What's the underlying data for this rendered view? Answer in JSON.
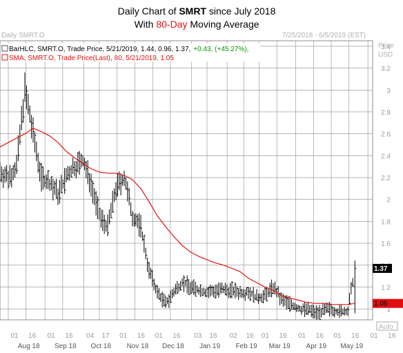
{
  "colors": {
    "price": "#000000",
    "sma": "#e01010",
    "up": "#009900",
    "grid": "#8c8c8c",
    "sma_tag": "#e01010"
  },
  "chart_data": {
    "type": "line",
    "title_line1": {
      "pre": "Daily Chart of ",
      "bold": "SMRT",
      "post": " since July 2018"
    },
    "title_line2": {
      "pre": "With ",
      "red": "80-Day",
      "post": " Moving Average"
    },
    "symbol_label": "Daily SMRT.O",
    "date_range": "7/25/2018 - 6/5/2019 (EST)",
    "price_label": "Price",
    "currency_label": "USD",
    "legend": {
      "bar": "BarHLC, SMRT.O, Trade Price, 5/21/2019, 1.44, 0.96, 1.37,",
      "bar_change": "+0.43, (+45.27%),",
      "sma": "SMA, SMRT.O, Trade Price(Last), 80, 5/21/2019, 1.05"
    },
    "last_price_tag": "1.37",
    "sma_tag": "1.05",
    "auto_label": "Auto",
    "y_ticks": [
      "3.4",
      "3.2",
      "3",
      "2.8",
      "2.6",
      "2.4",
      "2.2",
      "2",
      "1.8",
      "1.6",
      "1.4",
      "1.2",
      "1"
    ],
    "ylim": [
      0.9,
      3.45
    ],
    "x_days": [
      "01",
      "16",
      "01",
      "16",
      "04",
      "17",
      "01",
      "16",
      "01",
      "16",
      "03",
      "16",
      "02",
      "16",
      "01",
      "16",
      "01",
      "16",
      "01",
      "16",
      "01",
      "16",
      "03"
    ],
    "x_months": [
      "Aug 18",
      "Sep 18",
      "Oct 18",
      "Nov 18",
      "Dec 18",
      "Jan 19",
      "Feb 19",
      "Mar 19",
      "Apr 19",
      "May 19"
    ],
    "series": [
      {
        "name": "SMRT.O",
        "x": [
          "2018-07-25",
          "2018-08-01",
          "2018-08-08",
          "2018-08-15",
          "2018-08-22",
          "2018-08-29",
          "2018-09-05",
          "2018-09-12",
          "2018-09-19",
          "2018-09-26",
          "2018-10-03",
          "2018-10-10",
          "2018-10-17",
          "2018-10-24",
          "2018-10-31",
          "2018-11-07",
          "2018-11-14",
          "2018-11-21",
          "2018-11-28",
          "2018-12-05",
          "2018-12-12",
          "2018-12-19",
          "2018-12-26",
          "2019-01-02",
          "2019-01-09",
          "2019-01-16",
          "2019-01-23",
          "2019-01-30",
          "2019-02-06",
          "2019-02-13",
          "2019-02-20",
          "2019-02-27",
          "2019-03-06",
          "2019-03-13",
          "2019-03-20",
          "2019-03-27",
          "2019-04-03",
          "2019-04-10",
          "2019-04-17",
          "2019-04-24",
          "2019-05-01",
          "2019-05-08",
          "2019-05-15",
          "2019-05-21"
        ],
        "values": [
          2.25,
          2.2,
          2.3,
          3.0,
          2.6,
          2.2,
          2.15,
          2.05,
          2.2,
          2.3,
          2.35,
          2.15,
          1.85,
          1.75,
          2.1,
          2.2,
          1.85,
          1.75,
          1.35,
          1.15,
          1.05,
          1.15,
          1.25,
          1.2,
          1.17,
          1.15,
          1.17,
          1.17,
          1.17,
          1.15,
          1.16,
          1.1,
          1.12,
          1.2,
          1.08,
          1.05,
          1.0,
          1.0,
          0.97,
          0.98,
          1.0,
          0.97,
          0.98,
          1.37
        ]
      },
      {
        "name": "SMA 80",
        "x": [
          "2018-07-25",
          "2018-08-01",
          "2018-08-08",
          "2018-08-15",
          "2018-08-22",
          "2018-08-29",
          "2018-09-05",
          "2018-09-12",
          "2018-09-19",
          "2018-09-26",
          "2018-10-03",
          "2018-10-10",
          "2018-10-17",
          "2018-10-24",
          "2018-10-31",
          "2018-11-07",
          "2018-11-14",
          "2018-11-21",
          "2018-11-28",
          "2018-12-05",
          "2018-12-12",
          "2018-12-19",
          "2018-12-26",
          "2019-01-02",
          "2019-01-09",
          "2019-01-16",
          "2019-01-23",
          "2019-01-30",
          "2019-02-06",
          "2019-02-13",
          "2019-02-20",
          "2019-02-27",
          "2019-03-06",
          "2019-03-13",
          "2019-03-20",
          "2019-03-27",
          "2019-04-03",
          "2019-04-10",
          "2019-04-17",
          "2019-04-24",
          "2019-05-01",
          "2019-05-08",
          "2019-05-15",
          "2019-05-21"
        ],
        "values": [
          2.48,
          2.52,
          2.56,
          2.6,
          2.65,
          2.62,
          2.58,
          2.52,
          2.44,
          2.38,
          2.33,
          2.28,
          2.25,
          2.24,
          2.24,
          2.22,
          2.18,
          2.1,
          1.98,
          1.85,
          1.75,
          1.66,
          1.58,
          1.52,
          1.48,
          1.45,
          1.42,
          1.4,
          1.37,
          1.34,
          1.28,
          1.24,
          1.2,
          1.17,
          1.12,
          1.1,
          1.08,
          1.06,
          1.05,
          1.05,
          1.04,
          1.04,
          1.04,
          1.05
        ]
      }
    ]
  }
}
